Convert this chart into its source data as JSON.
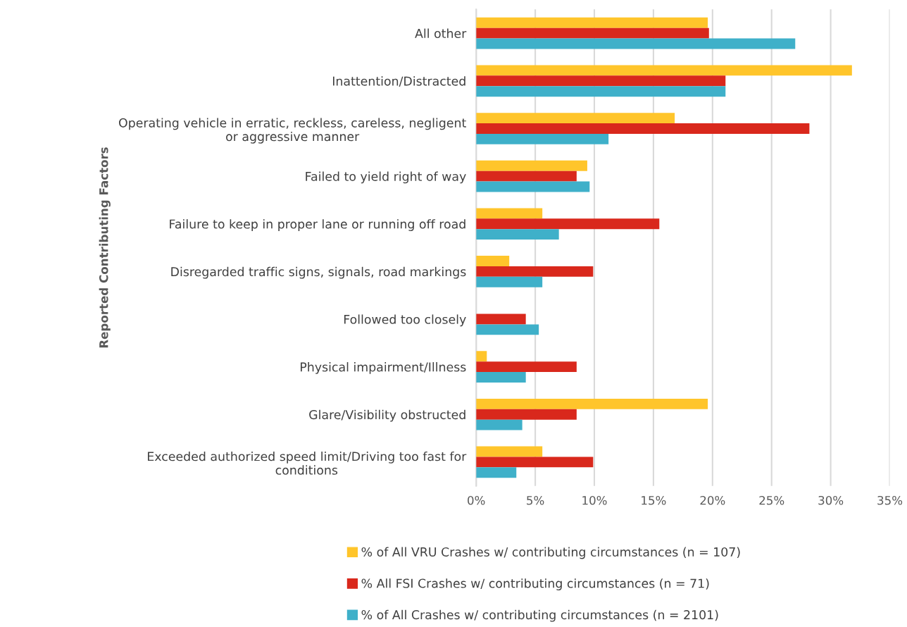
{
  "chart_data": {
    "type": "bar",
    "orientation": "horizontal",
    "ylabel": "Reported Contributing Factors",
    "categories": [
      "All other",
      "Inattention/Distracted",
      "Operating vehicle in erratic, reckless, careless, negligent\nor aggressive manner",
      "Failed to yield right of way",
      "Failure to keep in proper lane or running off road",
      "Disregarded traffic signs, signals, road markings",
      "Followed too closely",
      "Physical impairment/Illness",
      "Glare/Visibility obstructed",
      "Exceeded authorized speed limit/Driving too fast for\nconditions"
    ],
    "series": [
      {
        "name": "% of All VRU Crashes w/ contributing circumstances (n = 107)",
        "color": "#ffc52b",
        "values": [
          19.6,
          31.8,
          16.8,
          9.4,
          5.6,
          2.8,
          0,
          0.9,
          19.6,
          5.6
        ]
      },
      {
        "name": "% All FSI Crashes w/ contributing circumstances (n = 71)",
        "color": "#d9281c",
        "values": [
          19.7,
          21.1,
          28.2,
          8.5,
          15.5,
          9.9,
          4.2,
          8.5,
          8.5,
          9.9
        ]
      },
      {
        "name": "% of All Crashes w/ contributing circumstances (n = 2101)",
        "color": "#3fb0c9",
        "values": [
          27.0,
          21.1,
          11.2,
          9.6,
          7.0,
          5.6,
          5.3,
          4.2,
          3.9,
          3.4
        ]
      }
    ],
    "xlim": [
      0,
      35
    ],
    "xticks": [
      {
        "value": 0,
        "label": "0%"
      },
      {
        "value": 5,
        "label": "5%"
      },
      {
        "value": 10,
        "label": "10%"
      },
      {
        "value": 15,
        "label": "15%"
      },
      {
        "value": 20,
        "label": "20%"
      },
      {
        "value": 25,
        "label": "25%"
      },
      {
        "value": 30,
        "label": "30%"
      },
      {
        "value": 35,
        "label": "35%"
      }
    ],
    "grid": "x",
    "legend": "bottom"
  }
}
